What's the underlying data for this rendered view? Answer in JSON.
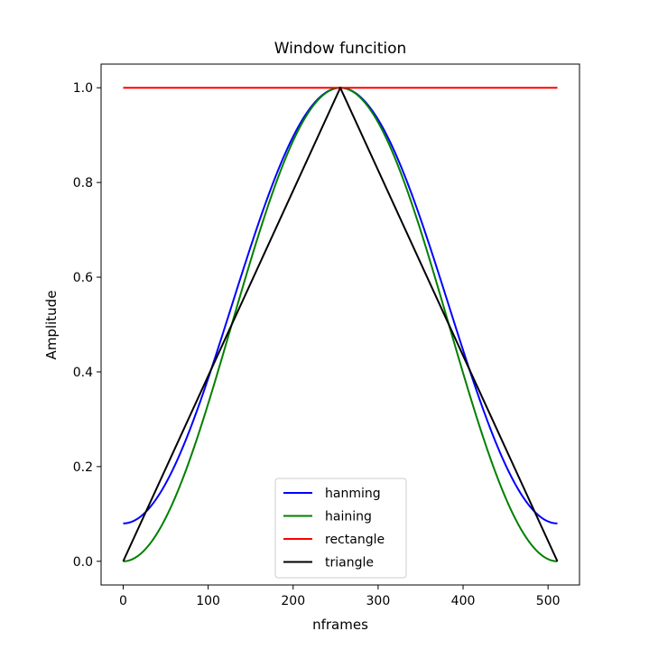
{
  "chart_data": {
    "type": "line",
    "title": "Window funcition",
    "xlabel": "nframes",
    "ylabel": "Amplitude",
    "xlim": [
      -26,
      537
    ],
    "ylim": [
      -0.05,
      1.05
    ],
    "xticks": [
      0,
      100,
      200,
      300,
      400,
      500
    ],
    "yticks": [
      0.0,
      0.2,
      0.4,
      0.6,
      0.8,
      1.0
    ],
    "xtick_labels": [
      "0",
      "100",
      "200",
      "300",
      "400",
      "500"
    ],
    "ytick_labels": [
      "0.0",
      "0.2",
      "0.4",
      "0.6",
      "0.8",
      "1.0"
    ],
    "grid": false,
    "legend_position": "bottom-center",
    "n_points": 512,
    "series": [
      {
        "name": "hanming",
        "color": "#0000ff",
        "x": [
          0,
          32,
          64,
          96,
          128,
          160,
          192,
          224,
          255,
          288,
          320,
          352,
          384,
          416,
          448,
          480,
          511
        ],
        "y": [
          0.08,
          0.114,
          0.214,
          0.363,
          0.54,
          0.717,
          0.866,
          0.966,
          1.0,
          0.966,
          0.866,
          0.717,
          0.54,
          0.363,
          0.214,
          0.114,
          0.08
        ]
      },
      {
        "name": "haining",
        "color": "#008000",
        "x": [
          0,
          32,
          64,
          96,
          128,
          160,
          192,
          224,
          255,
          288,
          320,
          352,
          384,
          416,
          448,
          480,
          511
        ],
        "y": [
          0.0,
          0.038,
          0.146,
          0.309,
          0.5,
          0.691,
          0.854,
          0.962,
          1.0,
          0.962,
          0.854,
          0.691,
          0.5,
          0.309,
          0.146,
          0.038,
          0.0
        ]
      },
      {
        "name": "rectangle",
        "color": "#ff0000",
        "x": [
          0,
          511
        ],
        "y": [
          1.0,
          1.0
        ]
      },
      {
        "name": "triangle",
        "color": "#000000",
        "x": [
          0,
          255.5,
          511
        ],
        "y": [
          0.0,
          1.0,
          0.0
        ]
      }
    ]
  }
}
